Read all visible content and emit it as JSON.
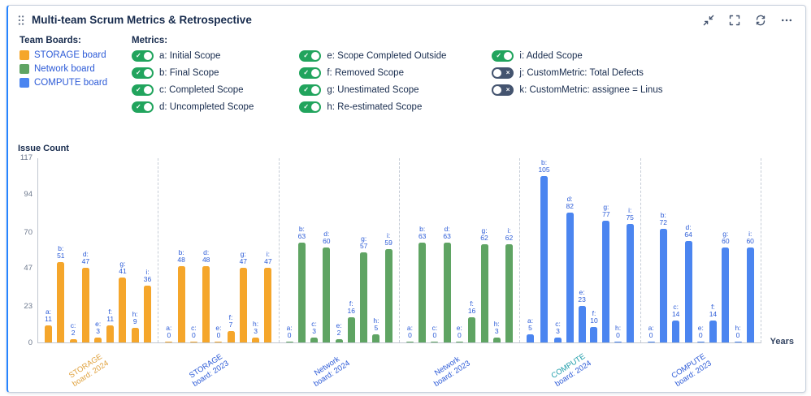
{
  "header": {
    "title": "Multi-team Scrum Metrics & Retrospective",
    "icons": [
      "drag-handle-icon",
      "collapse-icon",
      "fullscreen-icon",
      "refresh-icon",
      "more-icon"
    ]
  },
  "team_boards": {
    "heading": "Team Boards:",
    "items": [
      {
        "label": "STORAGE board",
        "color": "#F5A62B"
      },
      {
        "label": "Network board",
        "color": "#5FA463"
      },
      {
        "label": "COMPUTE board",
        "color": "#4B85F0"
      }
    ]
  },
  "metrics": {
    "heading": "Metrics:",
    "on_glyph": "✓",
    "off_glyph": "×",
    "toggle_on_color": "#21A45D",
    "toggle_off_color": "#44546F",
    "columns": [
      [
        {
          "key": "a",
          "label": "a: Initial Scope",
          "on": true
        },
        {
          "key": "b",
          "label": "b: Final Scope",
          "on": true
        },
        {
          "key": "c",
          "label": "c: Completed Scope",
          "on": true
        },
        {
          "key": "d",
          "label": "d: Uncompleted Scope",
          "on": true
        }
      ],
      [
        {
          "key": "e",
          "label": "e: Scope Completed Outside",
          "on": true
        },
        {
          "key": "f",
          "label": "f: Removed Scope",
          "on": true
        },
        {
          "key": "g",
          "label": "g: Unestimated Scope",
          "on": true
        },
        {
          "key": "h",
          "label": "h: Re-estimated Scope",
          "on": true
        }
      ],
      [
        {
          "key": "i",
          "label": "i: Added Scope",
          "on": true
        },
        {
          "key": "j",
          "label": "j: CustomMetric: Total Defects",
          "on": false
        },
        {
          "key": "k",
          "label": "k: CustomMetric: assignee = Linus",
          "on": false
        }
      ]
    ]
  },
  "chart_data": {
    "type": "bar",
    "ylabel": "Issue Count",
    "xlabel": "Years",
    "ylim": [
      0,
      117
    ],
    "yticks": [
      0,
      23,
      47,
      70,
      94,
      117
    ],
    "grid": false,
    "value_label_color": "#2b5bd7",
    "metric_keys": [
      "a",
      "b",
      "c",
      "d",
      "e",
      "f",
      "g",
      "h",
      "i"
    ],
    "groups": [
      {
        "line1": "STORAGE",
        "line2": "board: 2024",
        "color": "#F5A62B",
        "label_color1": "#E0A23E",
        "label_color2": "#E0A23E",
        "values": [
          11,
          51,
          2,
          47,
          3,
          11,
          41,
          9,
          36
        ]
      },
      {
        "line1": "STORAGE",
        "line2": "board: 2023",
        "color": "#F5A62B",
        "label_color1": "#2d5bd7",
        "label_color2": "#2d5bd7",
        "values": [
          0,
          48,
          0,
          48,
          0,
          7,
          47,
          3,
          47
        ]
      },
      {
        "line1": "Network",
        "line2": "board: 2024",
        "color": "#5FA463",
        "label_color1": "#2d5bd7",
        "label_color2": "#2d5bd7",
        "values": [
          0,
          63,
          3,
          60,
          2,
          16,
          57,
          5,
          59
        ]
      },
      {
        "line1": "Network",
        "line2": "board: 2023",
        "color": "#5FA463",
        "label_color1": "#2d5bd7",
        "label_color2": "#2d5bd7",
        "values": [
          0,
          63,
          0,
          63,
          0,
          16,
          62,
          3,
          62
        ]
      },
      {
        "line1": "COMPUTE",
        "line2": "board: 2024",
        "color": "#4B85F0",
        "label_color1": "#1a9ba8",
        "label_color2": "#2d5bd7",
        "values": [
          5,
          105,
          3,
          82,
          23,
          10,
          77,
          0,
          75
        ]
      },
      {
        "line1": "COMPUTE",
        "line2": "board: 2023",
        "color": "#4B85F0",
        "label_color1": "#2d5bd7",
        "label_color2": "#2d5bd7",
        "values": [
          0,
          72,
          14,
          64,
          0,
          14,
          60,
          0,
          60
        ]
      }
    ]
  }
}
